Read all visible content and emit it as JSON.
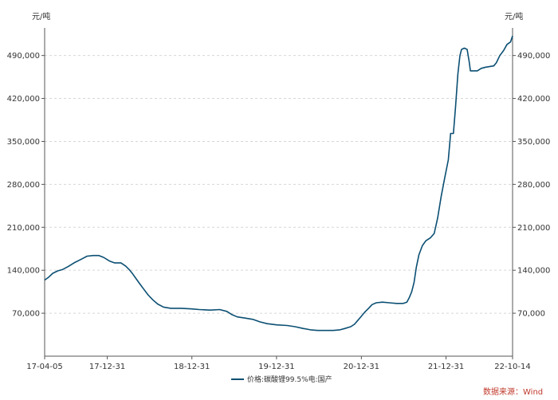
{
  "chart_data": {
    "type": "line",
    "unit_left": "元/吨",
    "unit_right": "元/吨",
    "yticks": [
      70000,
      140000,
      210000,
      280000,
      350000,
      420000,
      490000
    ],
    "ytick_labels": [
      "70,000",
      "140,000",
      "210,000",
      "280,000",
      "350,000",
      "420,000",
      "490,000"
    ],
    "ylim": [
      0,
      535000
    ],
    "xticks": [
      "2017-04-05",
      "2017-12-31",
      "2018-12-31",
      "2019-12-31",
      "2020-12-31",
      "2021-12-31",
      "2022-10-14"
    ],
    "xtick_labels": [
      "17-04-05",
      "17-12-31",
      "18-12-31",
      "19-12-31",
      "20-12-31",
      "21-12-31",
      "22-10-14"
    ],
    "xlim": [
      "2017-04-05",
      "2022-10-14"
    ],
    "grid": true,
    "series": [
      {
        "name": "价格:碳酸锂99.5%电:国产",
        "color": "#0b4f73",
        "points": [
          [
            "2017-04-05",
            124000
          ],
          [
            "2017-04-20",
            128000
          ],
          [
            "2017-05-10",
            135000
          ],
          [
            "2017-05-31",
            139000
          ],
          [
            "2017-06-20",
            141000
          ],
          [
            "2017-07-15",
            146000
          ],
          [
            "2017-08-10",
            152000
          ],
          [
            "2017-09-10",
            158000
          ],
          [
            "2017-10-05",
            163000
          ],
          [
            "2017-10-31",
            164000
          ],
          [
            "2017-11-25",
            164000
          ],
          [
            "2017-12-15",
            161000
          ],
          [
            "2018-01-10",
            155000
          ],
          [
            "2018-01-31",
            152000
          ],
          [
            "2018-02-28",
            152000
          ],
          [
            "2018-03-20",
            147000
          ],
          [
            "2018-04-05",
            141000
          ],
          [
            "2018-04-20",
            134000
          ],
          [
            "2018-05-05",
            126000
          ],
          [
            "2018-05-20",
            118000
          ],
          [
            "2018-06-05",
            110000
          ],
          [
            "2018-06-25",
            100000
          ],
          [
            "2018-07-15",
            92000
          ],
          [
            "2018-08-05",
            85000
          ],
          [
            "2018-08-31",
            80000
          ],
          [
            "2018-10-01",
            78000
          ],
          [
            "2018-11-15",
            78000
          ],
          [
            "2018-12-31",
            77000
          ],
          [
            "2019-02-01",
            76000
          ],
          [
            "2019-03-20",
            75000
          ],
          [
            "2019-04-30",
            76000
          ],
          [
            "2019-05-31",
            73000
          ],
          [
            "2019-06-20",
            68000
          ],
          [
            "2019-07-15",
            64000
          ],
          [
            "2019-08-20",
            62000
          ],
          [
            "2019-09-20",
            60000
          ],
          [
            "2019-10-20",
            56000
          ],
          [
            "2019-11-20",
            53000
          ],
          [
            "2019-12-31",
            51000
          ],
          [
            "2020-02-15",
            50000
          ],
          [
            "2020-03-20",
            48000
          ],
          [
            "2020-04-25",
            45000
          ],
          [
            "2020-05-25",
            43000
          ],
          [
            "2020-06-25",
            42000
          ],
          [
            "2020-07-31",
            42000
          ],
          [
            "2020-08-31",
            42000
          ],
          [
            "2020-09-30",
            43000
          ],
          [
            "2020-10-20",
            45000
          ],
          [
            "2020-11-15",
            48000
          ],
          [
            "2020-12-01",
            52000
          ],
          [
            "2020-12-15",
            58000
          ],
          [
            "2020-12-31",
            65000
          ],
          [
            "2021-01-15",
            72000
          ],
          [
            "2021-01-31",
            78000
          ],
          [
            "2021-02-15",
            84000
          ],
          [
            "2021-03-05",
            87000
          ],
          [
            "2021-04-01",
            88000
          ],
          [
            "2021-05-01",
            87000
          ],
          [
            "2021-05-31",
            86000
          ],
          [
            "2021-06-30",
            86000
          ],
          [
            "2021-07-15",
            88000
          ],
          [
            "2021-07-25",
            95000
          ],
          [
            "2021-08-05",
            105000
          ],
          [
            "2021-08-15",
            120000
          ],
          [
            "2021-08-25",
            145000
          ],
          [
            "2021-09-05",
            165000
          ],
          [
            "2021-09-20",
            180000
          ],
          [
            "2021-10-05",
            188000
          ],
          [
            "2021-10-25",
            193000
          ],
          [
            "2021-11-10",
            200000
          ],
          [
            "2021-11-25",
            225000
          ],
          [
            "2021-12-10",
            260000
          ],
          [
            "2021-12-25",
            290000
          ],
          [
            "2022-01-10",
            320000
          ],
          [
            "2022-01-20",
            363000
          ],
          [
            "2022-02-01",
            363000
          ],
          [
            "2022-02-10",
            405000
          ],
          [
            "2022-02-20",
            460000
          ],
          [
            "2022-03-01",
            490000
          ],
          [
            "2022-03-08",
            500000
          ],
          [
            "2022-03-20",
            502000
          ],
          [
            "2022-04-01",
            500000
          ],
          [
            "2022-04-10",
            480000
          ],
          [
            "2022-04-15",
            465000
          ],
          [
            "2022-05-15",
            465000
          ],
          [
            "2022-06-01",
            469000
          ],
          [
            "2022-06-20",
            471000
          ],
          [
            "2022-07-25",
            473000
          ],
          [
            "2022-08-05",
            478000
          ],
          [
            "2022-08-20",
            490000
          ],
          [
            "2022-09-05",
            498000
          ],
          [
            "2022-09-20",
            508000
          ],
          [
            "2022-10-05",
            512000
          ],
          [
            "2022-10-14",
            522000
          ]
        ]
      }
    ]
  },
  "legend_label": "价格:碳酸锂99.5%电:国产",
  "source_text": "数据来源：Wind"
}
